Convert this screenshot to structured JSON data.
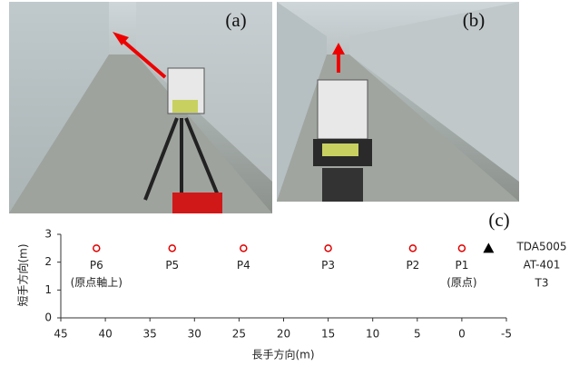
{
  "panels": [
    {
      "label": "(a)"
    },
    {
      "label": "(b)"
    }
  ],
  "chart_data": {
    "type": "scatter",
    "panel_label": "(c)",
    "x_label": "長手方向(m)",
    "y_label": "短手方向(m)",
    "xlim": [
      45,
      -5
    ],
    "xticks": [
      45,
      40,
      35,
      30,
      25,
      20,
      15,
      10,
      5,
      0,
      -5
    ],
    "ylim": [
      0,
      3
    ],
    "yticks": [
      0,
      1,
      2,
      3
    ],
    "series": [
      {
        "marker": "circle",
        "color": "#e00000",
        "x": [
          41,
          32.5,
          24.5,
          15,
          5.5,
          0
        ],
        "y": [
          2.5,
          2.5,
          2.5,
          2.5,
          2.5,
          2.5
        ],
        "labels": [
          "P6",
          "P5",
          "P4",
          "P3",
          "P2",
          "P1"
        ],
        "notes": [
          "(原点軸上)",
          null,
          null,
          null,
          null,
          "(原点)"
        ]
      },
      {
        "marker": "triangle",
        "color": "#000000",
        "x": [
          -3
        ],
        "y": [
          2.5
        ]
      }
    ],
    "instruments": [
      "TDA5005",
      "AT-401",
      "T3"
    ]
  }
}
